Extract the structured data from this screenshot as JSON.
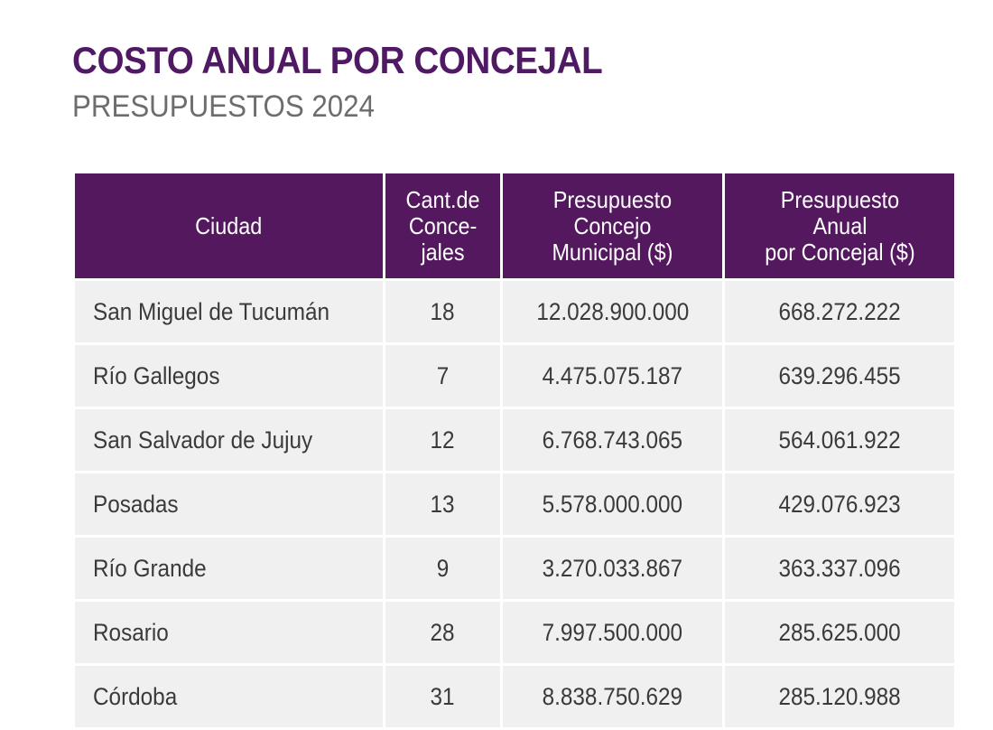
{
  "header": {
    "title": "COSTO ANUAL POR CONCEJAL",
    "subtitle": "PRESUPUESTOS 2024"
  },
  "colors": {
    "title": "#4f1a63",
    "header_bg": "#54185f",
    "row_bg": "#f0f0f0",
    "subtitle": "#6d6d6d"
  },
  "table": {
    "columns": [
      "Ciudad",
      "Cant.de\nConce-\njales",
      "Presupuesto\nConcejo\nMunicipal ($)",
      "Presupuesto\nAnual\npor Concejal ($)"
    ],
    "rows": [
      [
        "San Miguel de Tucumán",
        "18",
        "12.028.900.000",
        "668.272.222"
      ],
      [
        "Río Gallegos",
        "7",
        "4.475.075.187",
        "639.296.455"
      ],
      [
        "San Salvador de Jujuy",
        "12",
        "6.768.743.065",
        "564.061.922"
      ],
      [
        "Posadas",
        "13",
        "5.578.000.000",
        "429.076.923"
      ],
      [
        "Río Grande",
        "9",
        "3.270.033.867",
        "363.337.096"
      ],
      [
        "Rosario",
        "28",
        "7.997.500.000",
        "285.625.000"
      ],
      [
        "Córdoba",
        "31",
        "8.838.750.629",
        "285.120.988"
      ]
    ]
  }
}
